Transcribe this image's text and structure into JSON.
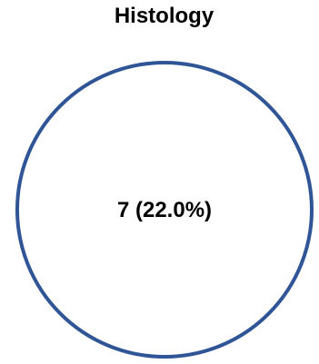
{
  "title": "Histology",
  "circle": {
    "label": "7 (22.0%)",
    "count": 7,
    "percent": 22.0,
    "stroke_color": "#2f5597",
    "fill_color": "#ffffff"
  }
}
